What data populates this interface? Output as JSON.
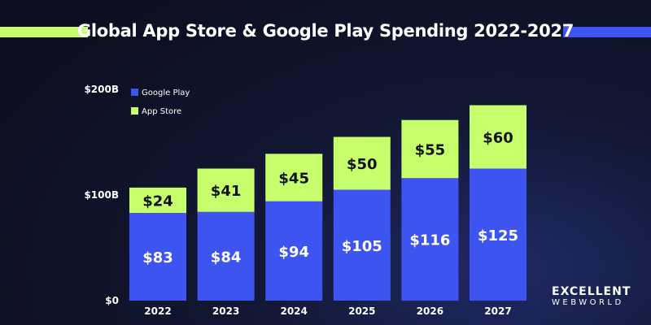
{
  "title": "Global App Store & Google Play Spending 2022-2027",
  "accent_colors": {
    "lime": "#c6ff6b",
    "blue": "#3d54f0"
  },
  "logo": {
    "line1": "EXCELLENT",
    "line2": "WEBWORLD"
  },
  "chart_data": {
    "type": "bar",
    "stacked": true,
    "categories": [
      "2022",
      "2023",
      "2024",
      "2025",
      "2026",
      "2027"
    ],
    "series": [
      {
        "name": "Google Play",
        "color": "#3d54f0",
        "values": [
          83,
          84,
          94,
          105,
          116,
          125
        ],
        "labels": [
          "$83",
          "$84",
          "$94",
          "$105",
          "$116",
          "$125"
        ]
      },
      {
        "name": "App Store",
        "color": "#c6ff6b",
        "values": [
          24,
          41,
          45,
          50,
          55,
          60
        ],
        "labels": [
          "$24",
          "$41",
          "$45",
          "$50",
          "$55",
          "$60"
        ]
      }
    ],
    "ylim": [
      0,
      200
    ],
    "yticks": [
      0,
      100,
      200
    ],
    "ytick_labels": [
      "$0",
      "$100B",
      "$200B"
    ],
    "legend": "top-left",
    "grid": false
  }
}
